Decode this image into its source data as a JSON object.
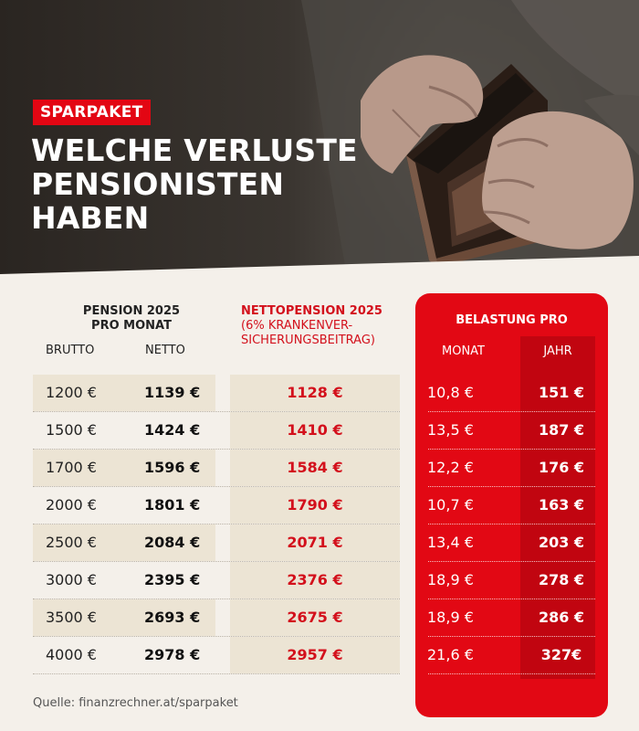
{
  "badge": "SPARPAKET",
  "headline": [
    "WELCHE VERLUSTE",
    "PENSIONISTEN",
    "HABEN"
  ],
  "table": {
    "pension_header": [
      "PENSION 2025",
      "PRO MONAT"
    ],
    "col_brutto": "BRUTTO",
    "col_netto": "NETTO",
    "nettopension_header": [
      "NETTOPENSION 2025",
      "(6% KRANKENVER-",
      "SICHERUNGSBEITRAG)"
    ],
    "belastung_header": "BELASTUNG PRO",
    "col_monat": "MONAT",
    "col_jahr": "JAHR",
    "rows": [
      {
        "brutto": "1200 €",
        "netto": "1139 €",
        "nettopension": "1128 €",
        "monat": "10,8 €",
        "jahr": "151 €"
      },
      {
        "brutto": "1500 €",
        "netto": "1424 €",
        "nettopension": "1410 €",
        "monat": "13,5 €",
        "jahr": "187 €"
      },
      {
        "brutto": "1700 €",
        "netto": "1596 €",
        "nettopension": "1584 €",
        "monat": "12,2 €",
        "jahr": "176 €"
      },
      {
        "brutto": "2000 €",
        "netto": "1801 €",
        "nettopension": "1790 €",
        "monat": "10,7 €",
        "jahr": "163 €"
      },
      {
        "brutto": "2500 €",
        "netto": "2084 €",
        "nettopension": "2071 €",
        "monat": "13,4 €",
        "jahr": "203 €"
      },
      {
        "brutto": "3000 €",
        "netto": "2395 €",
        "nettopension": "2376 €",
        "monat": "18,9 €",
        "jahr": "278 €"
      },
      {
        "brutto": "3500 €",
        "netto": "2693 €",
        "nettopension": "2675 €",
        "monat": "18,9 €",
        "jahr": "286 €"
      },
      {
        "brutto": "4000 €",
        "netto": "2978 €",
        "nettopension": "2957 €",
        "monat": "21,6 €",
        "jahr": "327€"
      }
    ]
  },
  "source": "Quelle: finanzrechner.at/sparpaket",
  "colors": {
    "accent_red": "#e20814",
    "dark_red": "#c10510",
    "row_shade": "#ece4d4",
    "page_bg": "#f4f0ea"
  },
  "chart_data": {
    "type": "table",
    "columns": [
      "BRUTTO",
      "NETTO",
      "NETTOPENSION 2025",
      "MONAT",
      "JAHR"
    ],
    "rows": [
      [
        "1200 €",
        "1139 €",
        "1128 €",
        "10,8 €",
        "151 €"
      ],
      [
        "1500 €",
        "1424 €",
        "1410 €",
        "13,5 €",
        "187 €"
      ],
      [
        "1700 €",
        "1596 €",
        "1584 €",
        "12,2 €",
        "176 €"
      ],
      [
        "2000 €",
        "1801 €",
        "1790 €",
        "10,7 €",
        "163 €"
      ],
      [
        "2500 €",
        "2084 €",
        "2071 €",
        "13,4 €",
        "203 €"
      ],
      [
        "3000 €",
        "2395 €",
        "2376 €",
        "18,9 €",
        "278 €"
      ],
      [
        "3500 €",
        "2693 €",
        "2675 €",
        "18,9 €",
        "286 €"
      ],
      [
        "4000 €",
        "2978 €",
        "2957 €",
        "21,6 €",
        "327€"
      ]
    ]
  }
}
